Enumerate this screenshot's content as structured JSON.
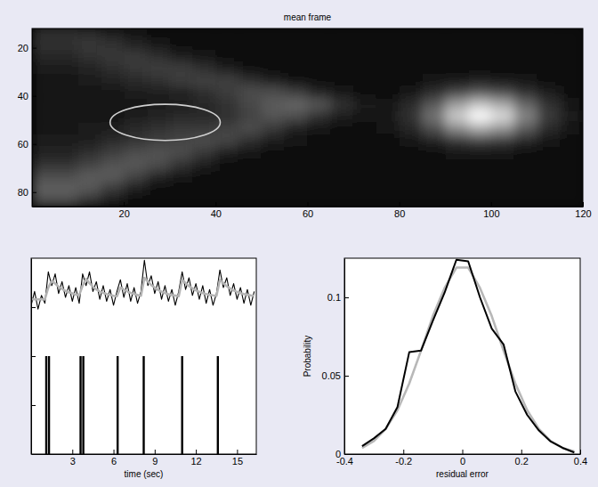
{
  "chart_data": [
    {
      "type": "heatmap",
      "title": "mean frame",
      "x": [
        2.5,
        7.5,
        12.5,
        17.5,
        22.5,
        27.5,
        32.5,
        37.5,
        42.5,
        47.5,
        52.5,
        57.5,
        62.5,
        67.5,
        72.5,
        77.5,
        82.5,
        87.5,
        92.5,
        97.5,
        102.5,
        107.5,
        112.5,
        117.5
      ],
      "y": [
        13.5,
        18.5,
        23.5,
        28.5,
        33.5,
        38.5,
        43.5,
        48.5,
        53.5,
        58.5,
        63.5,
        68.5,
        73.5,
        78.5,
        83.5
      ],
      "cells": [
        [
          0.18,
          0.18,
          0.17,
          0.12,
          0.08,
          0.06,
          0.05,
          0.05,
          0.05,
          0.05,
          0.05,
          0.05,
          0.05,
          0.05,
          0.05,
          0.05,
          0.05,
          0.05,
          0.05,
          0.05,
          0.05,
          0.05,
          0.05,
          0.05
        ],
        [
          0.2,
          0.2,
          0.22,
          0.2,
          0.14,
          0.08,
          0.06,
          0.05,
          0.05,
          0.05,
          0.05,
          0.05,
          0.05,
          0.05,
          0.05,
          0.05,
          0.05,
          0.05,
          0.05,
          0.05,
          0.05,
          0.05,
          0.05,
          0.05
        ],
        [
          0.15,
          0.15,
          0.2,
          0.22,
          0.23,
          0.18,
          0.1,
          0.07,
          0.05,
          0.05,
          0.05,
          0.05,
          0.05,
          0.05,
          0.05,
          0.05,
          0.05,
          0.05,
          0.05,
          0.05,
          0.05,
          0.05,
          0.05,
          0.05
        ],
        [
          0.1,
          0.1,
          0.14,
          0.18,
          0.22,
          0.24,
          0.24,
          0.18,
          0.1,
          0.06,
          0.05,
          0.05,
          0.05,
          0.05,
          0.05,
          0.05,
          0.05,
          0.05,
          0.05,
          0.05,
          0.05,
          0.05,
          0.05,
          0.05
        ],
        [
          0.08,
          0.08,
          0.1,
          0.13,
          0.16,
          0.2,
          0.24,
          0.26,
          0.25,
          0.18,
          0.1,
          0.06,
          0.05,
          0.05,
          0.05,
          0.05,
          0.05,
          0.07,
          0.09,
          0.1,
          0.09,
          0.08,
          0.06,
          0.05
        ],
        [
          0.08,
          0.08,
          0.08,
          0.09,
          0.1,
          0.12,
          0.14,
          0.18,
          0.24,
          0.3,
          0.3,
          0.24,
          0.14,
          0.08,
          0.06,
          0.05,
          0.09,
          0.16,
          0.26,
          0.32,
          0.28,
          0.18,
          0.1,
          0.06
        ],
        [
          0.07,
          0.07,
          0.07,
          0.08,
          0.09,
          0.1,
          0.12,
          0.15,
          0.2,
          0.28,
          0.36,
          0.4,
          0.34,
          0.2,
          0.1,
          0.08,
          0.16,
          0.35,
          0.62,
          0.77,
          0.66,
          0.4,
          0.19,
          0.09
        ],
        [
          0.07,
          0.07,
          0.08,
          0.09,
          0.1,
          0.14,
          0.16,
          0.17,
          0.18,
          0.26,
          0.33,
          0.3,
          0.18,
          0.1,
          0.07,
          0.09,
          0.2,
          0.45,
          0.8,
          1.0,
          0.86,
          0.52,
          0.23,
          0.1
        ],
        [
          0.08,
          0.08,
          0.1,
          0.12,
          0.16,
          0.2,
          0.22,
          0.22,
          0.26,
          0.3,
          0.22,
          0.12,
          0.07,
          0.06,
          0.05,
          0.07,
          0.15,
          0.31,
          0.54,
          0.67,
          0.58,
          0.36,
          0.17,
          0.08
        ],
        [
          0.1,
          0.1,
          0.12,
          0.16,
          0.2,
          0.24,
          0.27,
          0.3,
          0.28,
          0.18,
          0.1,
          0.07,
          0.05,
          0.05,
          0.05,
          0.05,
          0.08,
          0.14,
          0.21,
          0.25,
          0.22,
          0.15,
          0.09,
          0.06
        ],
        [
          0.14,
          0.14,
          0.18,
          0.24,
          0.3,
          0.32,
          0.3,
          0.22,
          0.12,
          0.07,
          0.05,
          0.05,
          0.05,
          0.05,
          0.05,
          0.05,
          0.05,
          0.05,
          0.08,
          0.08,
          0.08,
          0.06,
          0.05,
          0.05
        ],
        [
          0.2,
          0.2,
          0.26,
          0.32,
          0.35,
          0.3,
          0.2,
          0.1,
          0.06,
          0.05,
          0.05,
          0.05,
          0.05,
          0.05,
          0.05,
          0.05,
          0.05,
          0.05,
          0.05,
          0.05,
          0.05,
          0.05,
          0.05,
          0.05
        ],
        [
          0.3,
          0.3,
          0.36,
          0.36,
          0.26,
          0.14,
          0.07,
          0.05,
          0.05,
          0.05,
          0.05,
          0.05,
          0.05,
          0.05,
          0.05,
          0.05,
          0.05,
          0.05,
          0.05,
          0.05,
          0.05,
          0.05,
          0.05,
          0.05
        ],
        [
          0.38,
          0.38,
          0.34,
          0.22,
          0.1,
          0.06,
          0.05,
          0.05,
          0.05,
          0.05,
          0.05,
          0.05,
          0.05,
          0.05,
          0.05,
          0.05,
          0.05,
          0.05,
          0.05,
          0.05,
          0.05,
          0.05,
          0.05,
          0.05
        ],
        [
          0.3,
          0.3,
          0.2,
          0.1,
          0.06,
          0.05,
          0.05,
          0.05,
          0.05,
          0.05,
          0.05,
          0.05,
          0.05,
          0.05,
          0.05,
          0.05,
          0.05,
          0.05,
          0.05,
          0.05,
          0.05,
          0.05,
          0.05,
          0.05
        ]
      ],
      "clim": [
        0,
        1
      ],
      "roi": {
        "cx": 29,
        "cy": 51,
        "rx": 12,
        "ry": 7.5
      },
      "xlim": [
        0,
        120
      ],
      "ylim": [
        86,
        12
      ],
      "xticks": [
        20,
        40,
        60,
        80,
        100,
        120
      ],
      "yticks": [
        20,
        40,
        60,
        80
      ]
    },
    {
      "type": "line",
      "xlabel": "time (sec)",
      "x": [
        0,
        0.25,
        0.5,
        0.75,
        1,
        1.25,
        1.5,
        1.75,
        2,
        2.25,
        2.5,
        2.75,
        3,
        3.25,
        3.5,
        3.75,
        4,
        4.25,
        4.5,
        4.75,
        5,
        5.25,
        5.5,
        5.75,
        6,
        6.25,
        6.5,
        6.75,
        7,
        7.25,
        7.5,
        7.75,
        8,
        8.25,
        8.5,
        8.75,
        9,
        9.25,
        9.5,
        9.75,
        10,
        10.25,
        10.5,
        10.75,
        11,
        11.25,
        11.5,
        11.75,
        12,
        12.25,
        12.5,
        12.75,
        13,
        13.25,
        13.5,
        13.75,
        14,
        14.25,
        14.5,
        14.75,
        15,
        15.25,
        15.5,
        15.75,
        16,
        16.25
      ],
      "series": [
        {
          "color": "#000000",
          "values": [
            0.76,
            0.83,
            0.74,
            0.81,
            0.77,
            0.93,
            0.86,
            0.92,
            0.82,
            0.88,
            0.8,
            0.86,
            0.78,
            0.85,
            0.77,
            0.92,
            0.86,
            0.93,
            0.83,
            0.88,
            0.79,
            0.86,
            0.78,
            0.84,
            0.76,
            0.83,
            0.89,
            0.8,
            0.87,
            0.78,
            0.85,
            0.77,
            0.83,
            0.99,
            0.86,
            0.91,
            0.82,
            0.88,
            0.79,
            0.86,
            0.78,
            0.84,
            0.76,
            0.83,
            0.93,
            0.84,
            0.9,
            0.81,
            0.87,
            0.79,
            0.86,
            0.77,
            0.84,
            0.76,
            0.82,
            0.94,
            0.85,
            0.9,
            0.81,
            0.87,
            0.79,
            0.85,
            0.77,
            0.84,
            0.76,
            0.83
          ]
        },
        {
          "color": "#b4b4b4",
          "values": [
            0.79,
            0.79,
            0.79,
            0.79,
            0.79,
            0.85,
            0.885,
            0.87,
            0.855,
            0.843,
            0.833,
            0.826,
            0.82,
            0.815,
            0.812,
            0.86,
            0.895,
            0.872,
            0.855,
            0.84,
            0.83,
            0.823,
            0.817,
            0.812,
            0.808,
            0.806,
            0.85,
            0.84,
            0.83,
            0.823,
            0.817,
            0.812,
            0.808,
            0.9,
            0.88,
            0.863,
            0.85,
            0.838,
            0.829,
            0.822,
            0.816,
            0.812,
            0.809,
            0.806,
            0.89,
            0.873,
            0.858,
            0.846,
            0.836,
            0.828,
            0.822,
            0.817,
            0.813,
            0.81,
            0.808,
            0.89,
            0.872,
            0.857,
            0.845,
            0.835,
            0.828,
            0.822,
            0.817,
            0.813,
            0.81,
            0.808
          ]
        },
        {
          "type": "bar",
          "color": "#000000",
          "x": [
            1.1,
            1.3,
            3.6,
            3.8,
            6.3,
            8.2,
            11,
            13.6
          ],
          "values": [
            0.5,
            0.5,
            0.5,
            0.5,
            0.5,
            0.5,
            0.5,
            0.5
          ]
        }
      ],
      "xlim": [
        0,
        16.4
      ],
      "ylim": [
        0,
        1
      ],
      "xticks": [
        3,
        6,
        9,
        12,
        15
      ],
      "yticks": [
        0.25,
        0.5,
        0.75
      ],
      "tick_labels": "x"
    },
    {
      "type": "line",
      "xlabel": "residual error",
      "ylabel": "Probability",
      "x": [
        -0.34,
        -0.3,
        -0.26,
        -0.22,
        -0.18,
        -0.14,
        -0.1,
        -0.06,
        -0.02,
        0.02,
        0.06,
        0.1,
        0.14,
        0.18,
        0.22,
        0.26,
        0.3,
        0.34,
        0.38
      ],
      "series": [
        {
          "color": "#b8b8b8",
          "values": [
            0.0039,
            0.0083,
            0.016,
            0.028,
            0.045,
            0.066,
            0.088,
            0.106,
            0.119,
            0.119,
            0.106,
            0.088,
            0.066,
            0.045,
            0.028,
            0.016,
            0.0083,
            0.0039,
            0.0017
          ]
        },
        {
          "color": "#000000",
          "values": [
            0.005,
            0.01,
            0.016,
            0.03,
            0.065,
            0.066,
            0.085,
            0.103,
            0.124,
            0.123,
            0.1,
            0.08,
            0.07,
            0.04,
            0.025,
            0.015,
            0.008,
            0.004,
            0.001
          ]
        }
      ],
      "xlim": [
        -0.4,
        0.4
      ],
      "ylim": [
        0,
        0.125
      ],
      "xticks": [
        -0.4,
        -0.2,
        0,
        0.2,
        0.4
      ],
      "yticks": [
        0,
        0.05,
        0.1
      ]
    }
  ]
}
